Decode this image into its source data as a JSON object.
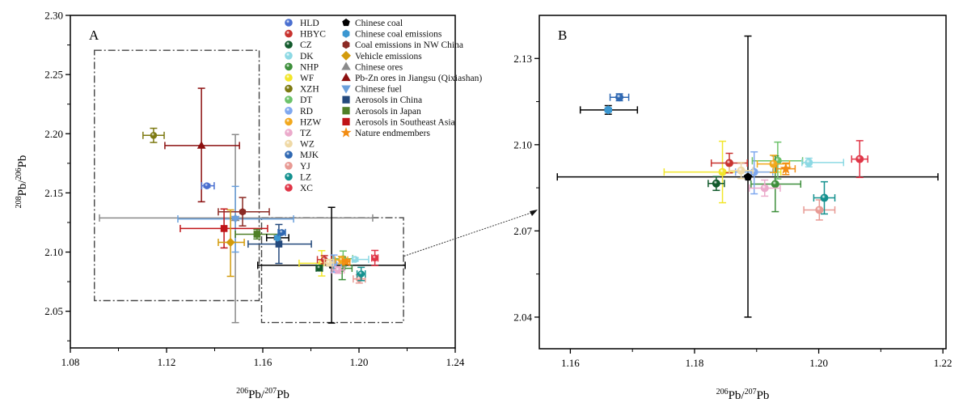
{
  "chart_data": [
    {
      "type": "scatter",
      "panel_label": "A",
      "xlabel": {
        "sup1": "206",
        "base1": "Pb/",
        "sup2": "207",
        "base2": "Pb"
      },
      "ylabel": {
        "sup1": "208",
        "base1": "Pb/",
        "sup2": "206",
        "base2": "Pb"
      },
      "xlim": [
        1.08,
        1.24
      ],
      "ylim": [
        2.019,
        2.3
      ],
      "xticks": [
        1.08,
        1.12,
        1.16,
        1.2,
        1.24
      ],
      "xtick_labels": [
        "1.08",
        "1.12",
        "1.16",
        "1.20",
        "1.24"
      ],
      "xminor": [
        1.1,
        1.14,
        1.18,
        1.22
      ],
      "yticks": [
        2.05,
        2.1,
        2.15,
        2.2,
        2.25,
        2.3
      ],
      "ytick_labels": [
        "2.05",
        "2.10",
        "2.15",
        "2.20",
        "2.25",
        "2.30"
      ],
      "yminor": [
        2.025,
        2.075,
        2.125,
        2.175,
        2.225,
        2.275
      ],
      "grid": false,
      "legend_placement": "top-right",
      "zoom_boxes": [
        {
          "x": [
            1.09,
            1.1585
          ],
          "y": [
            2.059,
            2.2705
          ]
        },
        {
          "x": [
            1.1595,
            1.2185
          ],
          "y": [
            2.0405,
            2.129
          ]
        }
      ],
      "zoom_arrow": {
        "from": [
          1.2187,
          2.0966
        ],
        "to_panel": "B"
      }
    },
    {
      "type": "scatter",
      "panel_label": "B",
      "xlabel": {
        "sup1": "206",
        "base1": "Pb/",
        "sup2": "207",
        "base2": "Pb"
      },
      "xlim": [
        1.155,
        1.2205
      ],
      "ylim": [
        2.029,
        2.145
      ],
      "xticks": [
        1.16,
        1.18,
        1.2,
        1.22
      ],
      "xtick_labels": [
        "1.16",
        "1.18",
        "1.20",
        "1.22"
      ],
      "xminor": [
        1.17,
        1.19,
        1.21
      ],
      "yticks": [
        2.04,
        2.07,
        2.1,
        2.13
      ],
      "ytick_labels": [
        "2.04",
        "2.07",
        "2.10",
        "2.13"
      ],
      "yminor": [
        2.055,
        2.085,
        2.115
      ],
      "grid": false
    }
  ],
  "series": [
    {
      "name": "HLD",
      "marker": "sphere",
      "color": "#4a6fd0",
      "x": 1.1368,
      "y": 2.156,
      "xerr": [
        0.0022,
        0.003
      ],
      "yerr": [
        0.0012,
        0.0012
      ],
      "panel_b": false
    },
    {
      "name": "HBYC",
      "marker": "sphere",
      "color": "#c8332f",
      "x": 1.1856,
      "y": 2.0936,
      "xerr": [
        0.0029,
        0.0029
      ],
      "yerr": [
        0.0034,
        0.0034
      ],
      "panel_b": true
    },
    {
      "name": "CZ",
      "marker": "sphere",
      "color": "#125a2c",
      "x": 1.1835,
      "y": 2.0865,
      "xerr": [
        0.0013,
        0.0013
      ],
      "yerr": [
        0.0024,
        0.0024
      ],
      "panel_b": true
    },
    {
      "name": "DK",
      "marker": "sphere",
      "color": "#8dd9e4",
      "x": 1.1984,
      "y": 2.0938,
      "xerr": [
        0.0011,
        0.0056
      ],
      "yerr": [
        0.0015,
        0.0015
      ],
      "panel_b": true
    },
    {
      "name": "NHP",
      "marker": "sphere",
      "color": "#3e8f3c",
      "x": 1.193,
      "y": 2.0863,
      "xerr": [
        0.0039,
        0.0041
      ],
      "yerr": [
        0.0096,
        0.0098
      ],
      "panel_b": true
    },
    {
      "name": "WF",
      "marker": "sphere",
      "color": "#f2e62a",
      "x": 1.1845,
      "y": 2.0905,
      "xerr": [
        0.0094,
        0.0094
      ],
      "yerr": [
        0.0107,
        0.0107
      ],
      "panel_b": true
    },
    {
      "name": "XZH",
      "marker": "sphere",
      "color": "#7d7a12",
      "x": 1.1146,
      "y": 2.1986,
      "xerr": [
        0.0044,
        0.0044
      ],
      "yerr": [
        0.006,
        0.006
      ],
      "panel_b": false
    },
    {
      "name": "DT",
      "marker": "sphere",
      "color": "#6cc26a",
      "x": 1.1934,
      "y": 2.0944,
      "xerr": [
        0.0041,
        0.004
      ],
      "yerr": [
        0.0063,
        0.0065
      ],
      "panel_b": true
    },
    {
      "name": "RD",
      "marker": "sphere",
      "color": "#7fa8ef",
      "x": 1.1896,
      "y": 2.0905,
      "xerr": [
        0.003,
        0.003
      ],
      "yerr": [
        0.0076,
        0.007
      ],
      "panel_b": true
    },
    {
      "name": "HZW",
      "marker": "sphere",
      "color": "#f2a81d",
      "x": 1.1927,
      "y": 2.0933,
      "xerr": [
        0.0026,
        0.0026
      ],
      "yerr": [
        0.003,
        0.003
      ],
      "panel_b": true
    },
    {
      "name": "TZ",
      "marker": "sphere",
      "color": "#ebaacb",
      "x": 1.1913,
      "y": 2.0849,
      "xerr": [
        0.0025,
        0.0025
      ],
      "yerr": [
        0.0028,
        0.0028
      ],
      "panel_b": true
    },
    {
      "name": "WZ",
      "marker": "sphere",
      "color": "#efd9a6",
      "x": 1.1875,
      "y": 2.091,
      "xerr": [
        0.0019,
        0.0019
      ],
      "yerr": [
        0.0028,
        0.0028
      ],
      "panel_b": true
    },
    {
      "name": "MJK",
      "marker": "sphere",
      "color": "#2f68b2",
      "x": 1.1679,
      "y": 2.1165,
      "xerr": [
        0.0015,
        0.0015
      ],
      "yerr": [
        0.0012,
        0.0012
      ],
      "panel_b": true
    },
    {
      "name": "YJ",
      "marker": "sphere",
      "color": "#e89a94",
      "x": 1.2001,
      "y": 2.0773,
      "xerr": [
        0.0025,
        0.0025
      ],
      "yerr": [
        0.0035,
        0.0035
      ],
      "panel_b": true
    },
    {
      "name": "LZ",
      "marker": "sphere",
      "color": "#14918f",
      "x": 1.2009,
      "y": 2.0815,
      "xerr": [
        0.0017,
        0.0017
      ],
      "yerr": [
        0.0056,
        0.0056
      ],
      "panel_b": true
    },
    {
      "name": "XC",
      "marker": "sphere",
      "color": "#e03547",
      "x": 1.2066,
      "y": 2.095,
      "xerr": [
        0.0013,
        0.0013
      ],
      "yerr": [
        0.0064,
        0.0064
      ],
      "panel_b": true
    },
    {
      "name": "Chinese coal",
      "marker": "pentagon",
      "color": "#000000",
      "x": 1.1886,
      "y": 2.0888,
      "xerr": [
        0.0307,
        0.0306
      ],
      "yerr": [
        0.0488,
        0.049
      ],
      "panel_b": true
    },
    {
      "name": "Chinese coal emissions",
      "marker": "hexagon",
      "color": "#3b97d1",
      "errcolor": "#000000",
      "x": 1.1661,
      "y": 2.1121,
      "xerr": [
        0.0045,
        0.0047
      ],
      "yerr": [
        0.0015,
        0.0015
      ],
      "panel_b": true
    },
    {
      "name": "Coal emissions in NW China",
      "marker": "hexagon",
      "color": "#8b2a24",
      "x": 1.1516,
      "y": 2.134,
      "xerr": [
        0.0101,
        0.0111
      ],
      "yerr": [
        0.0119,
        0.0121
      ],
      "panel_b": false
    },
    {
      "name": "Vehicle emissions",
      "marker": "diamond",
      "color": "#d39b0c",
      "x": 1.1466,
      "y": 2.1082,
      "xerr": [
        0.0051,
        0.0057
      ],
      "yerr": [
        0.0287,
        0.0274
      ],
      "panel_b": false
    },
    {
      "name": "Chinese ores",
      "marker": "triangle-up",
      "color": "#8a8a8a",
      "x": 1.1486,
      "y": 2.1288,
      "xerr": [
        0.0565,
        0.0571
      ],
      "yerr": [
        0.0884,
        0.0705
      ],
      "panel_b": false
    },
    {
      "name": "Pb-Zn ores in Jiangsu (Qixiashan)",
      "marker": "triangle-up",
      "color": "#8c1010",
      "x": 1.1345,
      "y": 2.19,
      "xerr": [
        0.0152,
        0.0158
      ],
      "yerr": [
        0.0475,
        0.0484
      ],
      "panel_b": false
    },
    {
      "name": "Chinese fuel",
      "marker": "triangle-down",
      "color": "#6aa0dc",
      "x": 1.1486,
      "y": 2.128,
      "xerr": [
        0.0239,
        0.0242
      ],
      "yerr": [
        0.028,
        0.0275
      ],
      "panel_b": false
    },
    {
      "name": "Aerosols in China",
      "marker": "square",
      "color": "#24497c",
      "x": 1.1667,
      "y": 2.1068,
      "xerr": [
        0.0128,
        0.0135
      ],
      "yerr": [
        0.0164,
        0.0165
      ],
      "panel_b": false
    },
    {
      "name": "Aerosols in Japan",
      "marker": "square",
      "color": "#4f7f27",
      "x": 1.1576,
      "y": 2.1151,
      "xerr": [
        0.009,
        0.0091
      ],
      "yerr": [
        0.004,
        0.004
      ],
      "panel_b": false
    },
    {
      "name": "Aerosols in Southeast Asia",
      "marker": "square",
      "color": "#c01418",
      "x": 1.1439,
      "y": 2.1199,
      "xerr": [
        0.0182,
        0.0181
      ],
      "yerr": [
        0.0164,
        0.0165
      ],
      "panel_b": false
    },
    {
      "name": "Nature endmembers",
      "marker": "star",
      "color": "#f28c12",
      "x": 1.1947,
      "y": 2.0916,
      "xerr": [
        0.0015,
        0.0015
      ],
      "yerr": [
        0.002,
        0.002
      ],
      "panel_b": true
    }
  ],
  "legend": {
    "column1": [
      "HLD",
      "HBYC",
      "CZ",
      "DK",
      "NHP",
      "WF",
      "XZH",
      "DT",
      "RD",
      "HZW",
      "TZ",
      "WZ",
      "MJK",
      "YJ",
      "LZ",
      "XC"
    ],
    "column2": [
      "Chinese coal",
      "Chinese coal emissions",
      "Coal emissions in NW China",
      "Vehicle emissions",
      "Chinese ores",
      "Pb-Zn ores in Jiangsu (Qixiashan)",
      "Chinese fuel",
      "Aerosols in China",
      "Aerosols in Japan",
      "Aerosols in Southeast Asia",
      "Nature endmembers"
    ]
  }
}
